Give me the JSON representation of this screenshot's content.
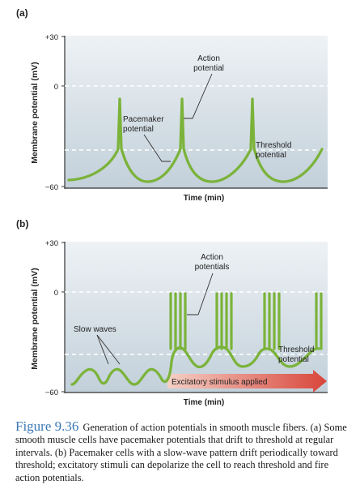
{
  "panel_a": {
    "label": "(a)",
    "y_axis_label": "Membrane potential (mV)",
    "x_axis_label": "Time (min)",
    "y_ticks": [
      "+30",
      "0",
      "−60"
    ],
    "annotations": {
      "action_potential": [
        "Action",
        "potential"
      ],
      "pacemaker_potential": [
        "Pacemaker",
        "potential"
      ],
      "threshold_potential": [
        "Threshold",
        "potential"
      ]
    }
  },
  "panel_b": {
    "label": "(b)",
    "y_axis_label": "Membrane potential (mV)",
    "x_axis_label": "Time (min)",
    "y_ticks": [
      "+30",
      "0",
      "−60"
    ],
    "annotations": {
      "action_potentials": [
        "Action",
        "potentials"
      ],
      "slow_waves": "Slow waves",
      "threshold_potential": [
        "Threshold",
        "potential"
      ],
      "stimulus": "Excitatory stimulus applied"
    }
  },
  "caption": {
    "figure_label": "Figure 9.36",
    "text": "Generation of action potentials in smooth muscle fibers. (a) Some smooth muscle cells have pacemaker potentials that drift to threshold at regular intervals. (b) Pacemaker cells with a slow-wave pattern drift periodically toward threshold; excitatory stimuli can depolarize the cell to reach threshold and fire action potentials."
  },
  "colors": {
    "trace": "#7bb33a",
    "panel_top": "#e9eef2",
    "panel_bottom": "#c4d2dc",
    "arrow_start": "#f2c3b8",
    "arrow_end": "#d9453a"
  }
}
